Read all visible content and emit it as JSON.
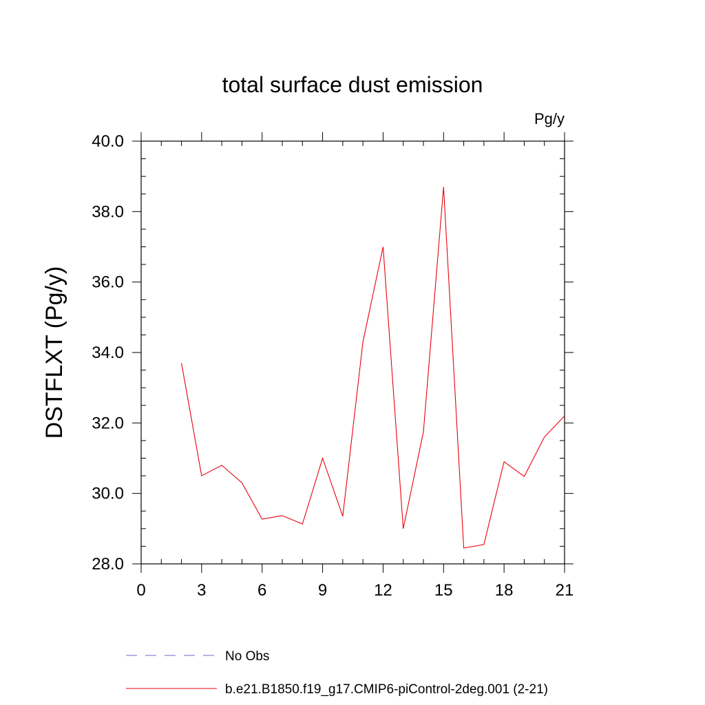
{
  "chart_data": {
    "type": "line",
    "title": "total surface dust emission",
    "units_label": "Pg/y",
    "ylabel": "DSTFLXT  (Pg/y)",
    "xlabel": "",
    "xlim": [
      0,
      21
    ],
    "ylim": [
      28.0,
      40.0
    ],
    "xticks": [
      0,
      3,
      6,
      9,
      12,
      15,
      18,
      21
    ],
    "xtick_labels": [
      "0",
      "3",
      "6",
      "9",
      "12",
      "15",
      "18",
      "21"
    ],
    "yticks": [
      28.0,
      30.0,
      32.0,
      34.0,
      36.0,
      38.0,
      40.0
    ],
    "ytick_labels": [
      "28.0",
      "30.0",
      "32.0",
      "34.0",
      "36.0",
      "38.0",
      "40.0"
    ],
    "grid": false,
    "legend_position": "bottom",
    "series": [
      {
        "name": "b.e21.B1850.f19_g17.CMIP6-piControl-2deg.001 (2-21)",
        "color": "#e8000b",
        "style": "solid",
        "x": [
          2,
          3,
          4,
          5,
          6,
          7,
          8,
          9,
          10,
          11,
          12,
          13,
          14,
          15,
          16,
          17,
          18,
          19,
          20,
          21
        ],
        "y": [
          33.7,
          30.5,
          30.8,
          30.3,
          29.27,
          29.37,
          29.13,
          31.0,
          29.35,
          34.3,
          37.0,
          29.0,
          31.75,
          38.7,
          28.45,
          28.55,
          30.9,
          30.48,
          31.6,
          32.2
        ]
      }
    ],
    "legend": [
      {
        "label": "No Obs",
        "color": "#6a6ad0",
        "style": "dashed"
      },
      {
        "label": "b.e21.B1850.f19_g17.CMIP6-piControl-2deg.001 (2-21)",
        "color": "#e8000b",
        "style": "solid"
      }
    ]
  }
}
